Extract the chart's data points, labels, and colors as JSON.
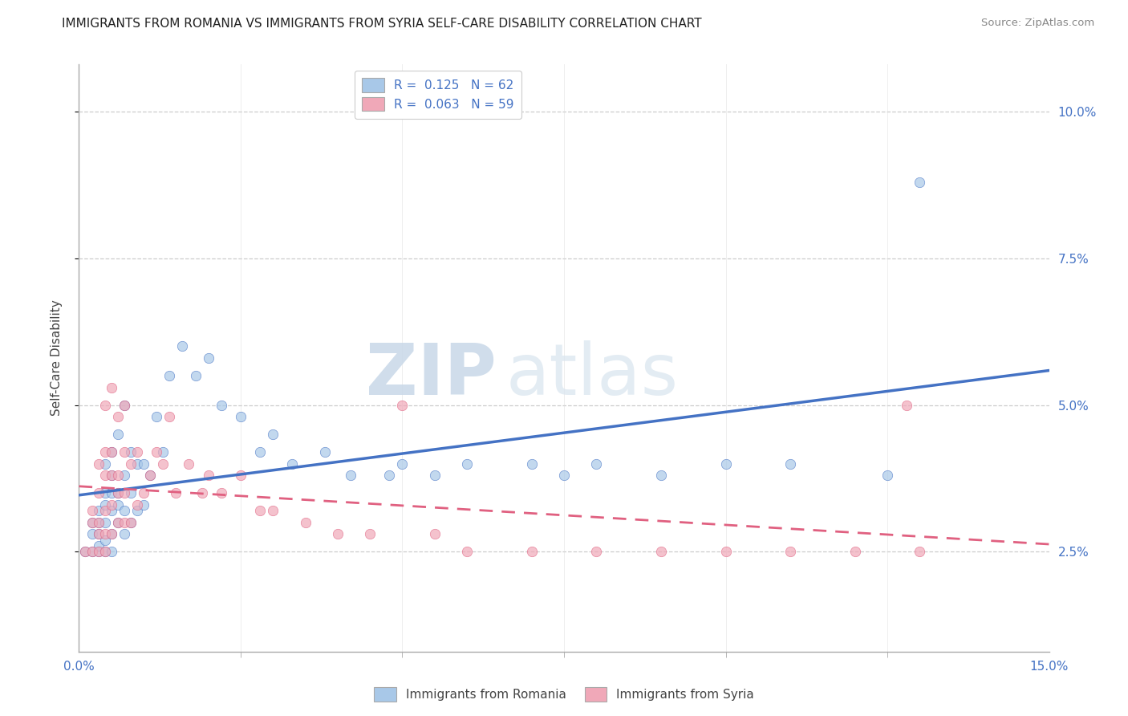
{
  "title": "IMMIGRANTS FROM ROMANIA VS IMMIGRANTS FROM SYRIA SELF-CARE DISABILITY CORRELATION CHART",
  "source": "Source: ZipAtlas.com",
  "ylabel": "Self-Care Disability",
  "ytick_vals": [
    0.025,
    0.05,
    0.075,
    0.1
  ],
  "ytick_labels": [
    "2.5%",
    "5.0%",
    "7.5%",
    "10.0%"
  ],
  "xmin": 0.0,
  "xmax": 0.15,
  "ymin": 0.008,
  "ymax": 0.108,
  "color_romania": "#A8C8E8",
  "color_syria": "#F0A8B8",
  "color_line_romania": "#4472C4",
  "color_line_syria": "#E06080",
  "romania_x": [
    0.001,
    0.002,
    0.002,
    0.002,
    0.003,
    0.003,
    0.003,
    0.003,
    0.003,
    0.004,
    0.004,
    0.004,
    0.004,
    0.004,
    0.004,
    0.005,
    0.005,
    0.005,
    0.005,
    0.005,
    0.005,
    0.006,
    0.006,
    0.006,
    0.006,
    0.007,
    0.007,
    0.007,
    0.007,
    0.008,
    0.008,
    0.008,
    0.009,
    0.009,
    0.01,
    0.01,
    0.011,
    0.012,
    0.013,
    0.014,
    0.016,
    0.018,
    0.02,
    0.022,
    0.025,
    0.028,
    0.03,
    0.033,
    0.038,
    0.042,
    0.048,
    0.05,
    0.055,
    0.06,
    0.07,
    0.075,
    0.08,
    0.09,
    0.1,
    0.11,
    0.125,
    0.13
  ],
  "romania_y": [
    0.025,
    0.025,
    0.028,
    0.03,
    0.025,
    0.026,
    0.028,
    0.03,
    0.032,
    0.025,
    0.027,
    0.03,
    0.033,
    0.035,
    0.04,
    0.025,
    0.028,
    0.032,
    0.035,
    0.038,
    0.042,
    0.03,
    0.033,
    0.035,
    0.045,
    0.028,
    0.032,
    0.038,
    0.05,
    0.03,
    0.035,
    0.042,
    0.032,
    0.04,
    0.033,
    0.04,
    0.038,
    0.048,
    0.042,
    0.055,
    0.06,
    0.055,
    0.058,
    0.05,
    0.048,
    0.042,
    0.045,
    0.04,
    0.042,
    0.038,
    0.038,
    0.04,
    0.038,
    0.04,
    0.04,
    0.038,
    0.04,
    0.038,
    0.04,
    0.04,
    0.038,
    0.088
  ],
  "syria_x": [
    0.001,
    0.002,
    0.002,
    0.002,
    0.003,
    0.003,
    0.003,
    0.003,
    0.003,
    0.004,
    0.004,
    0.004,
    0.004,
    0.004,
    0.004,
    0.005,
    0.005,
    0.005,
    0.005,
    0.005,
    0.006,
    0.006,
    0.006,
    0.006,
    0.007,
    0.007,
    0.007,
    0.007,
    0.008,
    0.008,
    0.009,
    0.009,
    0.01,
    0.011,
    0.012,
    0.013,
    0.014,
    0.015,
    0.017,
    0.019,
    0.02,
    0.022,
    0.025,
    0.028,
    0.03,
    0.035,
    0.04,
    0.045,
    0.05,
    0.055,
    0.06,
    0.07,
    0.08,
    0.09,
    0.1,
    0.11,
    0.12,
    0.13,
    0.128
  ],
  "syria_y": [
    0.025,
    0.025,
    0.03,
    0.032,
    0.025,
    0.028,
    0.03,
    0.035,
    0.04,
    0.025,
    0.028,
    0.032,
    0.038,
    0.042,
    0.05,
    0.028,
    0.033,
    0.038,
    0.042,
    0.053,
    0.03,
    0.035,
    0.038,
    0.048,
    0.03,
    0.035,
    0.042,
    0.05,
    0.03,
    0.04,
    0.033,
    0.042,
    0.035,
    0.038,
    0.042,
    0.04,
    0.048,
    0.035,
    0.04,
    0.035,
    0.038,
    0.035,
    0.038,
    0.032,
    0.032,
    0.03,
    0.028,
    0.028,
    0.05,
    0.028,
    0.025,
    0.025,
    0.025,
    0.025,
    0.025,
    0.025,
    0.025,
    0.025,
    0.05
  ],
  "watermark_zip": "ZIP",
  "watermark_atlas": "atlas",
  "background_color": "#FFFFFF"
}
